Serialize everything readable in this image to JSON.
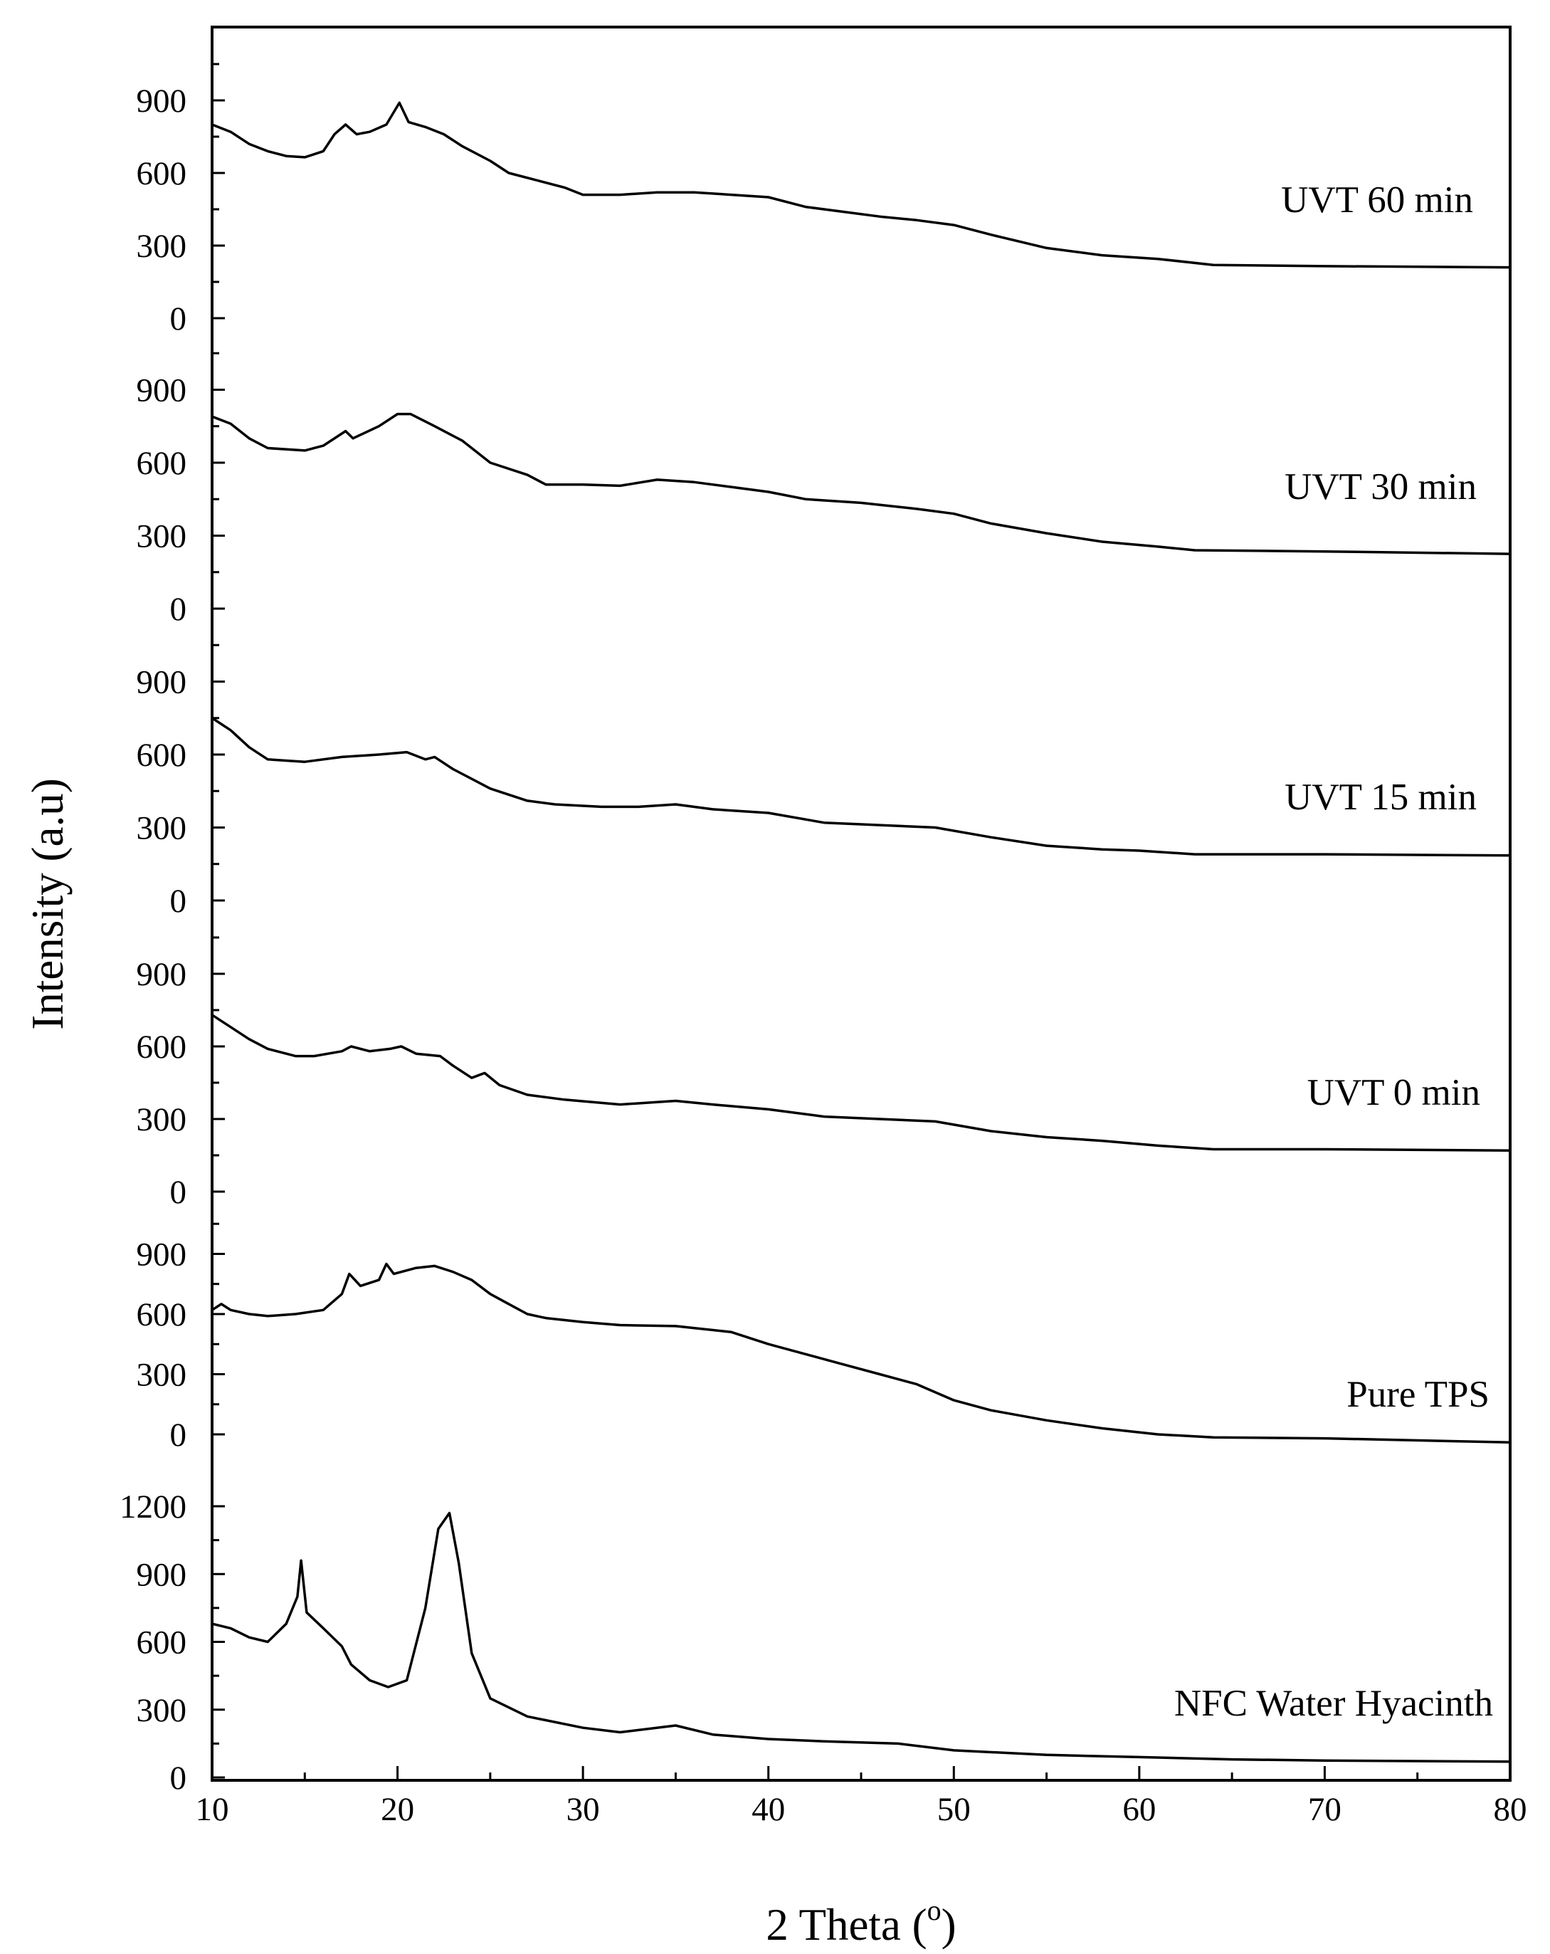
{
  "chart_data": {
    "type": "line",
    "xlabel": "2 Theta (",
    "xlabel_sup": "o",
    "xlabel_suffix": ")",
    "ylabel": "Intensity (a.u)",
    "xlim": [
      10,
      80
    ],
    "x_ticks": [
      10,
      20,
      30,
      40,
      50,
      60,
      70,
      80
    ],
    "x_tick_labels": [
      "10",
      "20",
      "30",
      "40",
      "50",
      "60",
      "70",
      "80"
    ],
    "grid": false,
    "legend": "none",
    "layout": "stacked-panels",
    "series": [
      {
        "name": "UVT 60 min",
        "ylim": [
          0,
          1200
        ],
        "yticks": [
          0,
          300,
          600,
          900
        ],
        "ytick_labels": [
          "0",
          "300",
          "600",
          "900"
        ],
        "points": [
          [
            10,
            800
          ],
          [
            11,
            770
          ],
          [
            12,
            720
          ],
          [
            13,
            690
          ],
          [
            14,
            670
          ],
          [
            15,
            665
          ],
          [
            16,
            690
          ],
          [
            16.6,
            760
          ],
          [
            17.2,
            800
          ],
          [
            17.8,
            760
          ],
          [
            18.5,
            770
          ],
          [
            19.4,
            800
          ],
          [
            20.1,
            890
          ],
          [
            20.6,
            810
          ],
          [
            21.5,
            790
          ],
          [
            22.5,
            760
          ],
          [
            23.5,
            710
          ],
          [
            25,
            650
          ],
          [
            26,
            600
          ],
          [
            27.5,
            570
          ],
          [
            29,
            540
          ],
          [
            30,
            510
          ],
          [
            32,
            510
          ],
          [
            34,
            520
          ],
          [
            36,
            520
          ],
          [
            38,
            510
          ],
          [
            40,
            500
          ],
          [
            42,
            460
          ],
          [
            44,
            440
          ],
          [
            46,
            420
          ],
          [
            48,
            405
          ],
          [
            50,
            385
          ],
          [
            52,
            345
          ],
          [
            55,
            290
          ],
          [
            58,
            260
          ],
          [
            61,
            245
          ],
          [
            64,
            220
          ],
          [
            70,
            215
          ],
          [
            80,
            210
          ]
        ]
      },
      {
        "name": "UVT 30 min",
        "ylim": [
          0,
          1200
        ],
        "yticks": [
          0,
          300,
          600,
          900
        ],
        "ytick_labels": [
          "0",
          "300",
          "600",
          "900"
        ],
        "points": [
          [
            10,
            790
          ],
          [
            11,
            760
          ],
          [
            12,
            700
          ],
          [
            13,
            660
          ],
          [
            15,
            650
          ],
          [
            16,
            670
          ],
          [
            17.2,
            730
          ],
          [
            17.6,
            700
          ],
          [
            19,
            750
          ],
          [
            20,
            800
          ],
          [
            20.7,
            800
          ],
          [
            22,
            750
          ],
          [
            23.5,
            690
          ],
          [
            25,
            600
          ],
          [
            27,
            550
          ],
          [
            28,
            510
          ],
          [
            30,
            510
          ],
          [
            32,
            505
          ],
          [
            34,
            530
          ],
          [
            36,
            520
          ],
          [
            38,
            500
          ],
          [
            40,
            480
          ],
          [
            42,
            450
          ],
          [
            45,
            435
          ],
          [
            48,
            410
          ],
          [
            50,
            390
          ],
          [
            52,
            350
          ],
          [
            55,
            310
          ],
          [
            58,
            275
          ],
          [
            61,
            255
          ],
          [
            63,
            240
          ],
          [
            70,
            235
          ],
          [
            80,
            225
          ]
        ]
      },
      {
        "name": "UVT 15 min",
        "ylim": [
          0,
          1200
        ],
        "yticks": [
          0,
          300,
          600,
          900
        ],
        "ytick_labels": [
          "0",
          "300",
          "600",
          "900"
        ],
        "points": [
          [
            10,
            750
          ],
          [
            11,
            700
          ],
          [
            12,
            630
          ],
          [
            13,
            580
          ],
          [
            15,
            570
          ],
          [
            17,
            590
          ],
          [
            19,
            600
          ],
          [
            20.5,
            610
          ],
          [
            21.5,
            580
          ],
          [
            22,
            590
          ],
          [
            23,
            540
          ],
          [
            25,
            460
          ],
          [
            27,
            410
          ],
          [
            28.5,
            395
          ],
          [
            31,
            385
          ],
          [
            33,
            385
          ],
          [
            35,
            395
          ],
          [
            37,
            375
          ],
          [
            40,
            360
          ],
          [
            43,
            320
          ],
          [
            46,
            310
          ],
          [
            49,
            300
          ],
          [
            52,
            260
          ],
          [
            55,
            225
          ],
          [
            58,
            210
          ],
          [
            60,
            205
          ],
          [
            63,
            190
          ],
          [
            70,
            190
          ],
          [
            80,
            185
          ]
        ]
      },
      {
        "name": "UVT 0 min",
        "ylim": [
          0,
          1200
        ],
        "yticks": [
          0,
          300,
          600,
          900
        ],
        "ytick_labels": [
          "0",
          "300",
          "600",
          "900"
        ],
        "points": [
          [
            10,
            730
          ],
          [
            11,
            680
          ],
          [
            12,
            630
          ],
          [
            13,
            590
          ],
          [
            14.5,
            560
          ],
          [
            15.5,
            560
          ],
          [
            17,
            580
          ],
          [
            17.5,
            600
          ],
          [
            18.5,
            580
          ],
          [
            19.6,
            590
          ],
          [
            20.2,
            600
          ],
          [
            21,
            570
          ],
          [
            22.3,
            560
          ],
          [
            23,
            520
          ],
          [
            24,
            470
          ],
          [
            24.7,
            490
          ],
          [
            25.5,
            440
          ],
          [
            27,
            400
          ],
          [
            29,
            380
          ],
          [
            32,
            360
          ],
          [
            35,
            375
          ],
          [
            37,
            360
          ],
          [
            40,
            340
          ],
          [
            43,
            310
          ],
          [
            46,
            300
          ],
          [
            49,
            290
          ],
          [
            52,
            250
          ],
          [
            55,
            225
          ],
          [
            58,
            210
          ],
          [
            61,
            190
          ],
          [
            64,
            175
          ],
          [
            70,
            175
          ],
          [
            80,
            170
          ]
        ]
      },
      {
        "name": "Pure TPS",
        "ylim": [
          0,
          1200
        ],
        "yticks": [
          0,
          300,
          600,
          900
        ],
        "ytick_labels": [
          "0",
          "300",
          "600",
          "900"
        ],
        "points": [
          [
            10,
            620
          ],
          [
            10.5,
            650
          ],
          [
            11,
            620
          ],
          [
            12,
            600
          ],
          [
            13,
            590
          ],
          [
            14.5,
            600
          ],
          [
            16,
            620
          ],
          [
            17,
            700
          ],
          [
            17.4,
            800
          ],
          [
            18,
            740
          ],
          [
            19,
            770
          ],
          [
            19.4,
            850
          ],
          [
            19.8,
            800
          ],
          [
            21,
            830
          ],
          [
            22,
            840
          ],
          [
            23,
            810
          ],
          [
            24,
            770
          ],
          [
            25,
            700
          ],
          [
            26,
            650
          ],
          [
            27,
            600
          ],
          [
            28,
            580
          ],
          [
            30,
            560
          ],
          [
            32,
            545
          ],
          [
            35,
            540
          ],
          [
            38,
            510
          ],
          [
            40,
            450
          ],
          [
            42,
            400
          ],
          [
            44,
            350
          ],
          [
            46,
            300
          ],
          [
            48,
            250
          ],
          [
            50,
            170
          ],
          [
            52,
            120
          ],
          [
            55,
            70
          ],
          [
            58,
            30
          ],
          [
            61,
            0
          ],
          [
            64,
            -15
          ],
          [
            70,
            -20
          ],
          [
            80,
            -40
          ]
        ]
      },
      {
        "name": "NFC Water Hyacinth",
        "ylim": [
          0,
          1300
        ],
        "yticks": [
          0,
          300,
          600,
          900,
          1200
        ],
        "ytick_labels": [
          "0",
          "300",
          "600",
          "900",
          "1200"
        ],
        "points": [
          [
            10,
            680
          ],
          [
            11,
            660
          ],
          [
            12,
            620
          ],
          [
            13,
            600
          ],
          [
            14,
            680
          ],
          [
            14.6,
            800
          ],
          [
            14.8,
            960
          ],
          [
            15.1,
            730
          ],
          [
            16,
            660
          ],
          [
            17,
            580
          ],
          [
            17.5,
            500
          ],
          [
            18.5,
            430
          ],
          [
            19.5,
            400
          ],
          [
            20.5,
            430
          ],
          [
            21.5,
            750
          ],
          [
            22.2,
            1100
          ],
          [
            22.8,
            1170
          ],
          [
            23.3,
            950
          ],
          [
            24,
            550
          ],
          [
            25,
            350
          ],
          [
            27,
            270
          ],
          [
            30,
            220
          ],
          [
            32,
            200
          ],
          [
            35,
            230
          ],
          [
            37,
            190
          ],
          [
            40,
            170
          ],
          [
            43,
            160
          ],
          [
            47,
            150
          ],
          [
            50,
            120
          ],
          [
            55,
            100
          ],
          [
            60,
            90
          ],
          [
            65,
            80
          ],
          [
            70,
            75
          ],
          [
            80,
            70
          ]
        ]
      }
    ]
  }
}
